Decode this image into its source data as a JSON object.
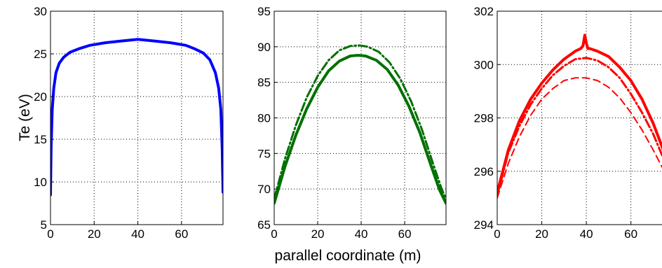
{
  "figure": {
    "ylabel": "Te (eV)",
    "xlabel": "parallel coordinate (m)"
  },
  "chart_data": [
    {
      "type": "line",
      "xlim": [
        0,
        79
      ],
      "ylim": [
        5,
        30
      ],
      "xticks": [
        0,
        20,
        40,
        60
      ],
      "yticks": [
        5,
        10,
        15,
        20,
        25,
        30
      ],
      "grid": true,
      "ylabel": "Te (eV)",
      "xlabel": "",
      "series": [
        {
          "color": "#0000ff",
          "style": "solid",
          "x": [
            0,
            0.3,
            0.8,
            1.5,
            2.5,
            4,
            6,
            9,
            13,
            18,
            25,
            32,
            40,
            48,
            55,
            62,
            66,
            70,
            73,
            75.5,
            77,
            78,
            78.6,
            79
          ],
          "y": [
            8.5,
            14,
            18.5,
            21,
            22.8,
            23.9,
            24.6,
            25.2,
            25.6,
            26,
            26.3,
            26.5,
            26.7,
            26.5,
            26.3,
            26,
            25.6,
            25.1,
            24.3,
            22.8,
            21,
            18.5,
            14,
            8.8
          ]
        }
      ]
    },
    {
      "type": "line",
      "xlim": [
        0,
        79
      ],
      "ylim": [
        65,
        95
      ],
      "xticks": [
        0,
        20,
        40,
        60
      ],
      "yticks": [
        65,
        70,
        75,
        80,
        85,
        90,
        95
      ],
      "grid": true,
      "xlabel": "parallel coordinate (m)",
      "series": [
        {
          "color": "#007000",
          "style": "solid",
          "x": [
            0,
            5,
            10,
            15,
            20,
            25,
            30,
            35,
            38.5,
            42,
            47,
            52,
            57,
            62,
            67,
            72,
            76,
            79
          ],
          "y": [
            68,
            73.2,
            77.6,
            81.3,
            84.3,
            86.6,
            88,
            88.7,
            88.8,
            88.7,
            88.1,
            86.8,
            84.6,
            81.6,
            77.9,
            73.4,
            69.9,
            68
          ]
        },
        {
          "color": "#007000",
          "style": "dashdot",
          "x": [
            0,
            5,
            10,
            15,
            20,
            25,
            30,
            35,
            39,
            43,
            48,
            53,
            58,
            63,
            68,
            73,
            77,
            79
          ],
          "y": [
            68.6,
            74.3,
            79,
            82.9,
            85.9,
            88.1,
            89.5,
            90.1,
            90.2,
            90,
            89.3,
            87.8,
            85.5,
            82.3,
            78.3,
            73.6,
            70,
            68.6
          ]
        }
      ]
    },
    {
      "type": "line",
      "xlim": [
        0,
        79
      ],
      "ylim": [
        294,
        302
      ],
      "xticks": [
        0,
        20,
        40,
        60
      ],
      "yticks": [
        294,
        296,
        298,
        300,
        302
      ],
      "grid": true,
      "xlabel": "",
      "series": [
        {
          "color": "#ff0000",
          "style": "solid",
          "x": [
            0,
            5,
            10,
            15,
            20,
            25,
            30,
            35,
            37.5,
            38.5,
            39.3,
            40,
            40.7,
            41.5,
            45,
            50,
            55,
            60,
            65,
            70,
            75,
            79
          ],
          "y": [
            295.2,
            296.8,
            297.9,
            298.7,
            299.3,
            299.8,
            300.2,
            300.5,
            300.6,
            300.7,
            301.1,
            300.8,
            300.6,
            300.6,
            300.5,
            300.3,
            299.9,
            299.4,
            298.7,
            297.8,
            296.7,
            295.8
          ]
        },
        {
          "color": "#ff0000",
          "style": "dashdot",
          "x": [
            0,
            5,
            10,
            15,
            20,
            25,
            30,
            35,
            40,
            45,
            50,
            55,
            60,
            65,
            70,
            75,
            79
          ],
          "y": [
            295.1,
            296.7,
            297.7,
            298.5,
            299.1,
            299.6,
            299.95,
            300.2,
            300.25,
            300.15,
            299.9,
            299.5,
            298.9,
            298.2,
            297.4,
            296.4,
            295.6
          ]
        },
        {
          "color": "#ff0000",
          "style": "dashed",
          "x": [
            0,
            5,
            10,
            15,
            20,
            25,
            30,
            35,
            40,
            45,
            50,
            55,
            60,
            65,
            70,
            75,
            79
          ],
          "y": [
            295.0,
            296.3,
            297.3,
            298.1,
            298.7,
            299.1,
            299.4,
            299.5,
            299.5,
            299.4,
            299.15,
            298.75,
            298.2,
            297.55,
            296.8,
            296.0,
            295.4
          ]
        }
      ]
    }
  ]
}
